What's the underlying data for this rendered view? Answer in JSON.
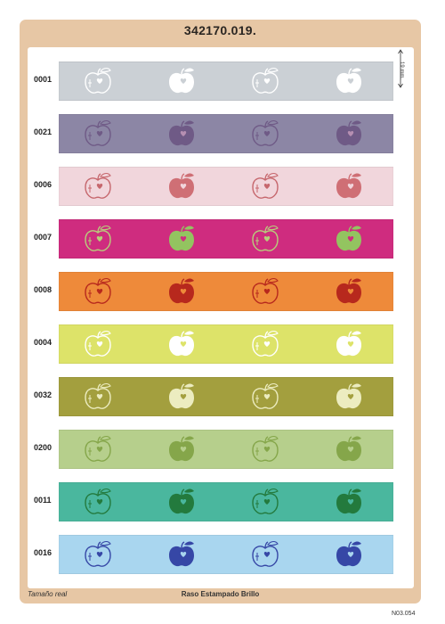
{
  "title": "342170.019.",
  "dimension_label": "19 mm.",
  "footer": {
    "left": "Tamaño real",
    "center": "Raso Estampado Brillo",
    "ref": "N03.054"
  },
  "rows": [
    {
      "code": "0001",
      "bg": "#cbd0d5",
      "outline": "#ffffff",
      "filled": "#ffffff",
      "heart": "#cbd0d5"
    },
    {
      "code": "0021",
      "bg": "#8c86a5",
      "outline": "#6f5a86",
      "filled": "#6f5a86",
      "heart": "#b68fb2"
    },
    {
      "code": "0006",
      "bg": "#f1d6dc",
      "outline": "#c6676d",
      "filled": "#cf6f75",
      "heart": "#f1d6dc"
    },
    {
      "code": "0007",
      "bg": "#cf2c7f",
      "outline": "#b7d07b",
      "filled": "#93c460",
      "heart": "#cf2c7f"
    },
    {
      "code": "0008",
      "bg": "#ee8a3a",
      "outline": "#b7281d",
      "filled": "#b7281d",
      "heart": "#ee8a3a"
    },
    {
      "code": "0004",
      "bg": "#dde369",
      "outline": "#ffffff",
      "filled": "#ffffff",
      "heart": "#dde369"
    },
    {
      "code": "0032",
      "bg": "#a39f3e",
      "outline": "#ececc0",
      "filled": "#ececc0",
      "heart": "#a39f3e"
    },
    {
      "code": "0200",
      "bg": "#b6cf8c",
      "outline": "#85a64a",
      "filled": "#85a64a",
      "heart": "#b6cf8c"
    },
    {
      "code": "0011",
      "bg": "#4ab79e",
      "outline": "#237a3d",
      "filled": "#237a3d",
      "heart": "#4ab79e"
    },
    {
      "code": "0016",
      "bg": "#a9d6ef",
      "outline": "#3647a6",
      "filled": "#3647a6",
      "heart": "#a9d6ef"
    }
  ],
  "apple_pattern": [
    "outline",
    "filled",
    "outline",
    "filled"
  ]
}
